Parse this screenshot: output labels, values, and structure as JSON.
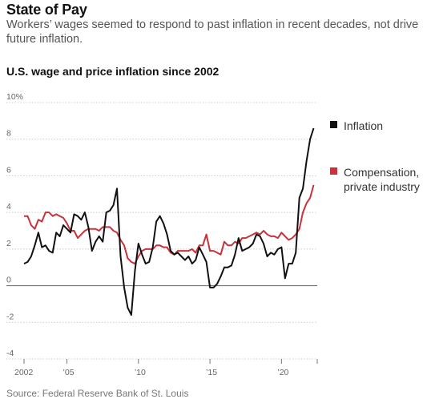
{
  "header": {
    "title": "State of Pay",
    "subtitle": "Workers’ wages seemed to respond to past inflation in recent decades, not drive future inflation."
  },
  "chart_title": "U.S. wage and price inflation since 2002",
  "source": "Source: Federal Reserve Bank of St. Louis",
  "colors": {
    "inflation": "#111111",
    "compensation": "#c8323a",
    "grid": "#cccccc",
    "zero": "#777777"
  },
  "legend": [
    {
      "name": "Inflation",
      "color": "#111111"
    },
    {
      "name": "Compensation,\nprivate industry",
      "color": "#c8323a"
    }
  ],
  "chart_data": {
    "type": "line",
    "title": "U.S. wage and price inflation since 2002",
    "xlim": [
      2002,
      2022.5
    ],
    "ylim": [
      -4,
      10
    ],
    "y_ticks": [
      10,
      8,
      6,
      4,
      2,
      0,
      -2,
      -4
    ],
    "y_tick_labels": [
      "10%",
      "8",
      "6",
      "4",
      "2",
      "0",
      "-2",
      "-4"
    ],
    "x_ticks": [
      2002,
      2005,
      2010,
      2015,
      2020
    ],
    "x_tick_labels": [
      "2002",
      "’05",
      "’10",
      "’15",
      "’20"
    ],
    "grid": true,
    "series": [
      {
        "name": "Inflation",
        "color": "#111111",
        "x": [
          2002.0,
          2002.25,
          2002.5,
          2002.75,
          2003.0,
          2003.25,
          2003.5,
          2003.75,
          2004.0,
          2004.25,
          2004.5,
          2004.75,
          2005.0,
          2005.25,
          2005.5,
          2005.75,
          2006.0,
          2006.25,
          2006.5,
          2006.75,
          2007.0,
          2007.25,
          2007.5,
          2007.75,
          2008.0,
          2008.25,
          2008.5,
          2008.75,
          2009.0,
          2009.25,
          2009.5,
          2009.75,
          2010.0,
          2010.25,
          2010.5,
          2010.75,
          2011.0,
          2011.25,
          2011.5,
          2011.75,
          2012.0,
          2012.25,
          2012.5,
          2012.75,
          2013.0,
          2013.25,
          2013.5,
          2013.75,
          2014.0,
          2014.25,
          2014.5,
          2014.75,
          2015.0,
          2015.25,
          2015.5,
          2015.75,
          2016.0,
          2016.25,
          2016.5,
          2016.75,
          2017.0,
          2017.25,
          2017.5,
          2017.75,
          2018.0,
          2018.25,
          2018.5,
          2018.75,
          2019.0,
          2019.25,
          2019.5,
          2019.75,
          2020.0,
          2020.25,
          2020.5,
          2020.75,
          2021.0,
          2021.25,
          2021.5,
          2021.75,
          2022.0,
          2022.25
        ],
        "values": [
          1.2,
          1.3,
          1.6,
          2.2,
          2.9,
          2.1,
          2.2,
          1.9,
          1.8,
          2.9,
          2.7,
          3.3,
          3.1,
          2.9,
          3.9,
          3.8,
          3.6,
          4.0,
          3.2,
          1.9,
          2.4,
          2.7,
          2.4,
          4.0,
          4.1,
          4.4,
          5.3,
          1.6,
          -0.1,
          -1.2,
          -1.6,
          0.8,
          2.3,
          1.7,
          1.2,
          1.3,
          2.1,
          3.5,
          3.8,
          3.4,
          2.8,
          1.9,
          1.7,
          1.8,
          1.6,
          1.4,
          1.6,
          1.2,
          1.4,
          2.1,
          1.7,
          1.3,
          -0.1,
          -0.1,
          0.1,
          0.5,
          1.0,
          1.0,
          1.1,
          1.7,
          2.6,
          1.9,
          2.0,
          2.1,
          2.3,
          2.8,
          2.7,
          2.3,
          1.6,
          1.8,
          1.7,
          2.0,
          2.1,
          0.4,
          1.2,
          1.2,
          1.8,
          4.8,
          5.3,
          6.8,
          8.0,
          8.6
        ]
      },
      {
        "name": "Compensation, private industry",
        "color": "#c8323a",
        "x": [
          2002.0,
          2002.25,
          2002.5,
          2002.75,
          2003.0,
          2003.25,
          2003.5,
          2003.75,
          2004.0,
          2004.25,
          2004.5,
          2004.75,
          2005.0,
          2005.25,
          2005.5,
          2005.75,
          2006.0,
          2006.25,
          2006.5,
          2006.75,
          2007.0,
          2007.25,
          2007.5,
          2007.75,
          2008.0,
          2008.25,
          2008.5,
          2008.75,
          2009.0,
          2009.25,
          2009.5,
          2009.75,
          2010.0,
          2010.25,
          2010.5,
          2010.75,
          2011.0,
          2011.25,
          2011.5,
          2011.75,
          2012.0,
          2012.25,
          2012.5,
          2012.75,
          2013.0,
          2013.25,
          2013.5,
          2013.75,
          2014.0,
          2014.25,
          2014.5,
          2014.75,
          2015.0,
          2015.25,
          2015.5,
          2015.75,
          2016.0,
          2016.25,
          2016.5,
          2016.75,
          2017.0,
          2017.25,
          2017.5,
          2017.75,
          2018.0,
          2018.25,
          2018.5,
          2018.75,
          2019.0,
          2019.25,
          2019.5,
          2019.75,
          2020.0,
          2020.25,
          2020.5,
          2020.75,
          2021.0,
          2021.25,
          2021.5,
          2021.75,
          2022.0,
          2022.25
        ],
        "values": [
          3.8,
          3.8,
          3.3,
          3.1,
          3.6,
          3.5,
          4.0,
          4.0,
          3.8,
          3.9,
          3.8,
          3.7,
          3.4,
          3.0,
          3.0,
          2.6,
          2.8,
          3.0,
          3.1,
          3.1,
          3.1,
          3.0,
          3.2,
          3.2,
          3.2,
          3.0,
          2.9,
          2.5,
          2.2,
          1.5,
          1.3,
          1.2,
          1.6,
          1.9,
          2.0,
          2.0,
          2.0,
          2.2,
          2.2,
          2.1,
          2.1,
          1.8,
          1.7,
          1.9,
          1.9,
          1.9,
          1.9,
          2.0,
          1.8,
          2.2,
          2.2,
          2.8,
          1.9,
          1.9,
          1.8,
          1.7,
          2.4,
          2.2,
          2.2,
          2.4,
          2.3,
          2.6,
          2.6,
          2.7,
          2.8,
          2.9,
          2.8,
          3.0,
          2.8,
          2.7,
          2.7,
          2.6,
          2.9,
          2.7,
          2.5,
          2.6,
          2.8,
          3.1,
          4.0,
          4.5,
          4.8,
          5.5
        ]
      }
    ]
  }
}
